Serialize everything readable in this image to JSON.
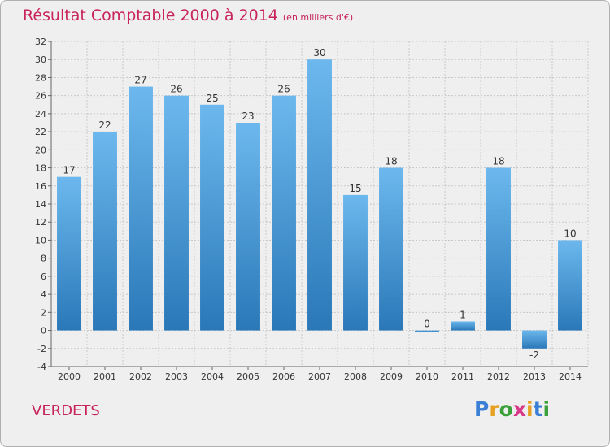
{
  "chart_data": {
    "type": "bar",
    "title": "Résultat Comptable 2000 à 2014",
    "subtitle": "(en milliers d'€)",
    "categories": [
      "2000",
      "2001",
      "2002",
      "2003",
      "2004",
      "2005",
      "2006",
      "2007",
      "2008",
      "2009",
      "2010",
      "2011",
      "2012",
      "2013",
      "2014"
    ],
    "values": [
      17,
      22,
      27,
      26,
      25,
      23,
      26,
      30,
      15,
      18,
      0,
      1,
      18,
      -2,
      10
    ],
    "ylim": [
      -4,
      32
    ],
    "yticks": [
      -4,
      -2,
      0,
      2,
      4,
      6,
      8,
      10,
      12,
      14,
      16,
      18,
      20,
      22,
      24,
      26,
      28,
      30,
      32
    ],
    "grid": true,
    "xlabel": "",
    "ylabel": ""
  },
  "place_name": "VERDETS",
  "brand": {
    "letters": [
      "P",
      "r",
      "o",
      "x",
      "i",
      "t",
      "i"
    ],
    "colors": [
      "#3a7fd6",
      "#e8a020",
      "#3aa03a",
      "#d83a8a",
      "#e8a020",
      "#3a7fd6",
      "#3aa03a"
    ]
  },
  "colors": {
    "bar_top": "#6cb8ee",
    "bar_bottom": "#2a78b8",
    "title": "#c8245a",
    "grid": "#c8c8c8"
  }
}
